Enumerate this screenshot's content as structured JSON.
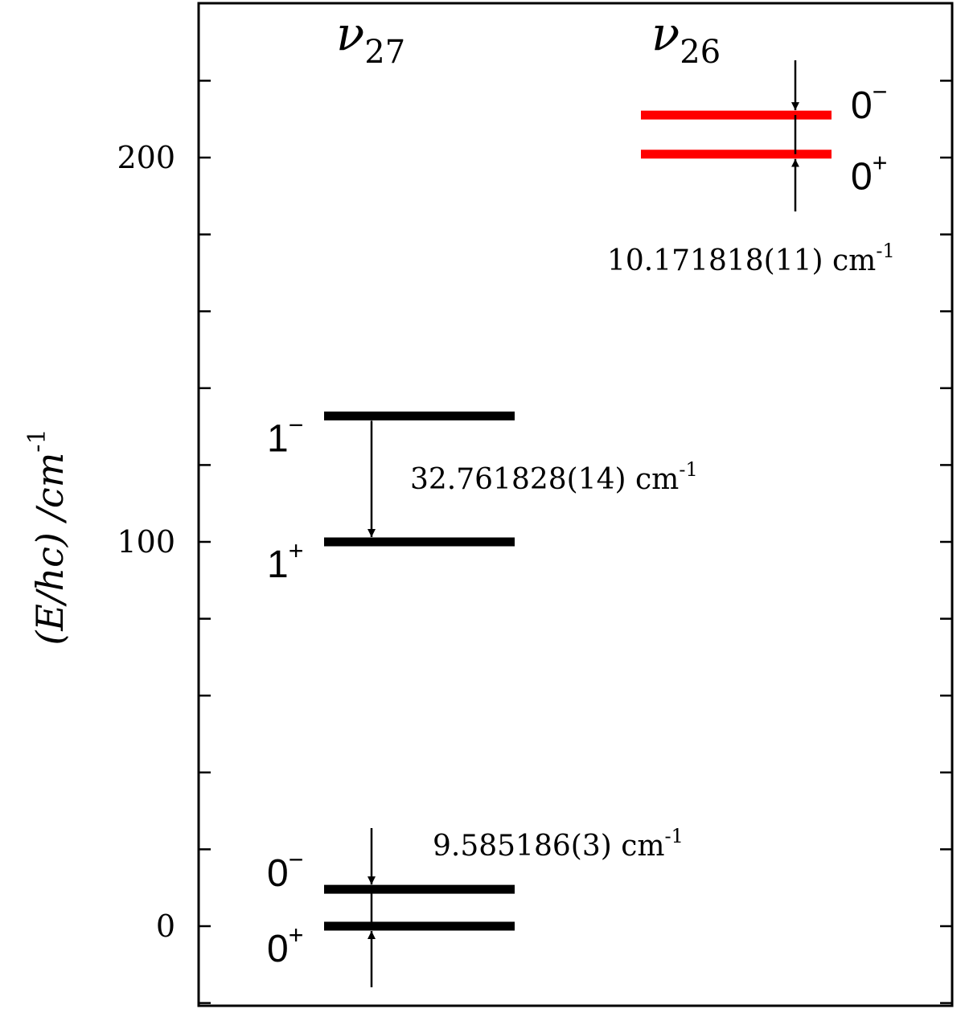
{
  "chart_data": {
    "type": "energy-level-diagram",
    "ylabel": "(E/hc) /cm",
    "ylabel_exponent": "-1",
    "ylim": [
      -18,
      238
    ],
    "y_ticks": [
      0,
      100,
      200
    ],
    "y_tick_labels": [
      "0",
      "100",
      "200"
    ],
    "columns": [
      {
        "name": "ν27",
        "base": "ν",
        "subscript": "27"
      },
      {
        "name": "ν26",
        "base": "ν",
        "subscript": "26"
      }
    ],
    "levels": [
      {
        "column": "ν27",
        "label_base": "0",
        "label_sign": "+",
        "energy": 0.0,
        "color": "#000000"
      },
      {
        "column": "ν27",
        "label_base": "0",
        "label_sign": "−",
        "energy": 9.585186,
        "color": "#000000"
      },
      {
        "column": "ν27",
        "label_base": "1",
        "label_sign": "+",
        "energy": 100.0,
        "color": "#000000"
      },
      {
        "column": "ν27",
        "label_base": "1",
        "label_sign": "−",
        "energy": 132.761828,
        "color": "#000000"
      },
      {
        "column": "ν26",
        "label_base": "0",
        "label_sign": "+",
        "energy": 200.9,
        "color": "#ff0000"
      },
      {
        "column": "ν26",
        "label_base": "0",
        "label_sign": "−",
        "energy": 211.071818,
        "color": "#ff0000"
      }
    ],
    "splittings": [
      {
        "text": "9.585186(3) cm",
        "unit_exponent": "-1",
        "value": 9.585186
      },
      {
        "text": "32.761828(14) cm",
        "unit_exponent": "-1",
        "value": 32.761828
      },
      {
        "text": "10.171818(11) cm",
        "unit_exponent": "-1",
        "value": 10.171818
      }
    ]
  }
}
